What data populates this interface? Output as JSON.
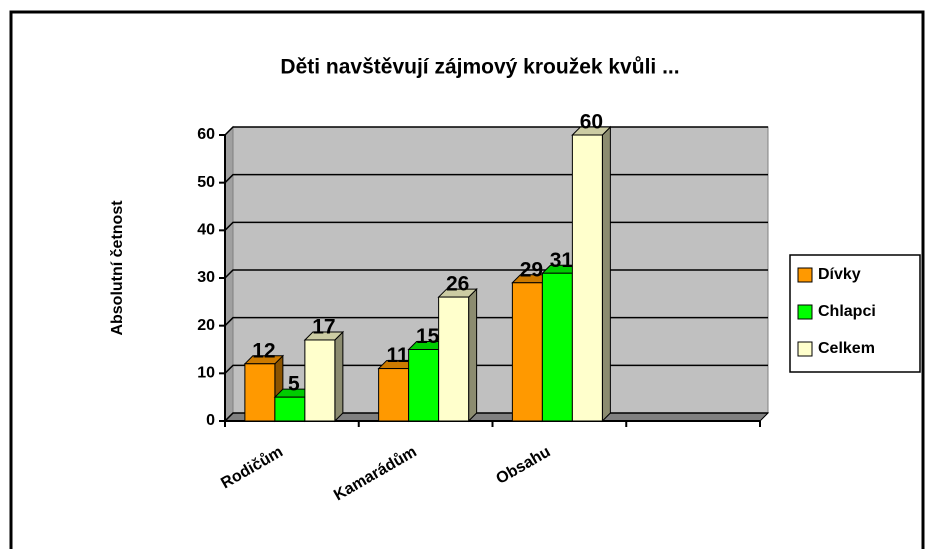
{
  "chart_data": {
    "type": "bar3d",
    "title": "Děti navštěvují zájmový kroužek kvůli ...",
    "y_label": "Absolutní četnost",
    "categories": [
      "Rodičům",
      "Kamarádům",
      "Obsahu",
      null
    ],
    "series": [
      {
        "name": "Dívky",
        "color": "#ff9900",
        "values": [
          12,
          11,
          29,
          null
        ]
      },
      {
        "name": "Chlapci",
        "color": "#00ff00",
        "values": [
          5,
          15,
          31,
          null
        ]
      },
      {
        "name": "Celkem",
        "color": "#ffffcc",
        "values": [
          17,
          26,
          60,
          null
        ]
      }
    ],
    "ylim": [
      0,
      60
    ],
    "yticks": [
      0,
      10,
      20,
      30,
      40,
      50,
      60
    ],
    "grid": true,
    "legend": "right"
  }
}
